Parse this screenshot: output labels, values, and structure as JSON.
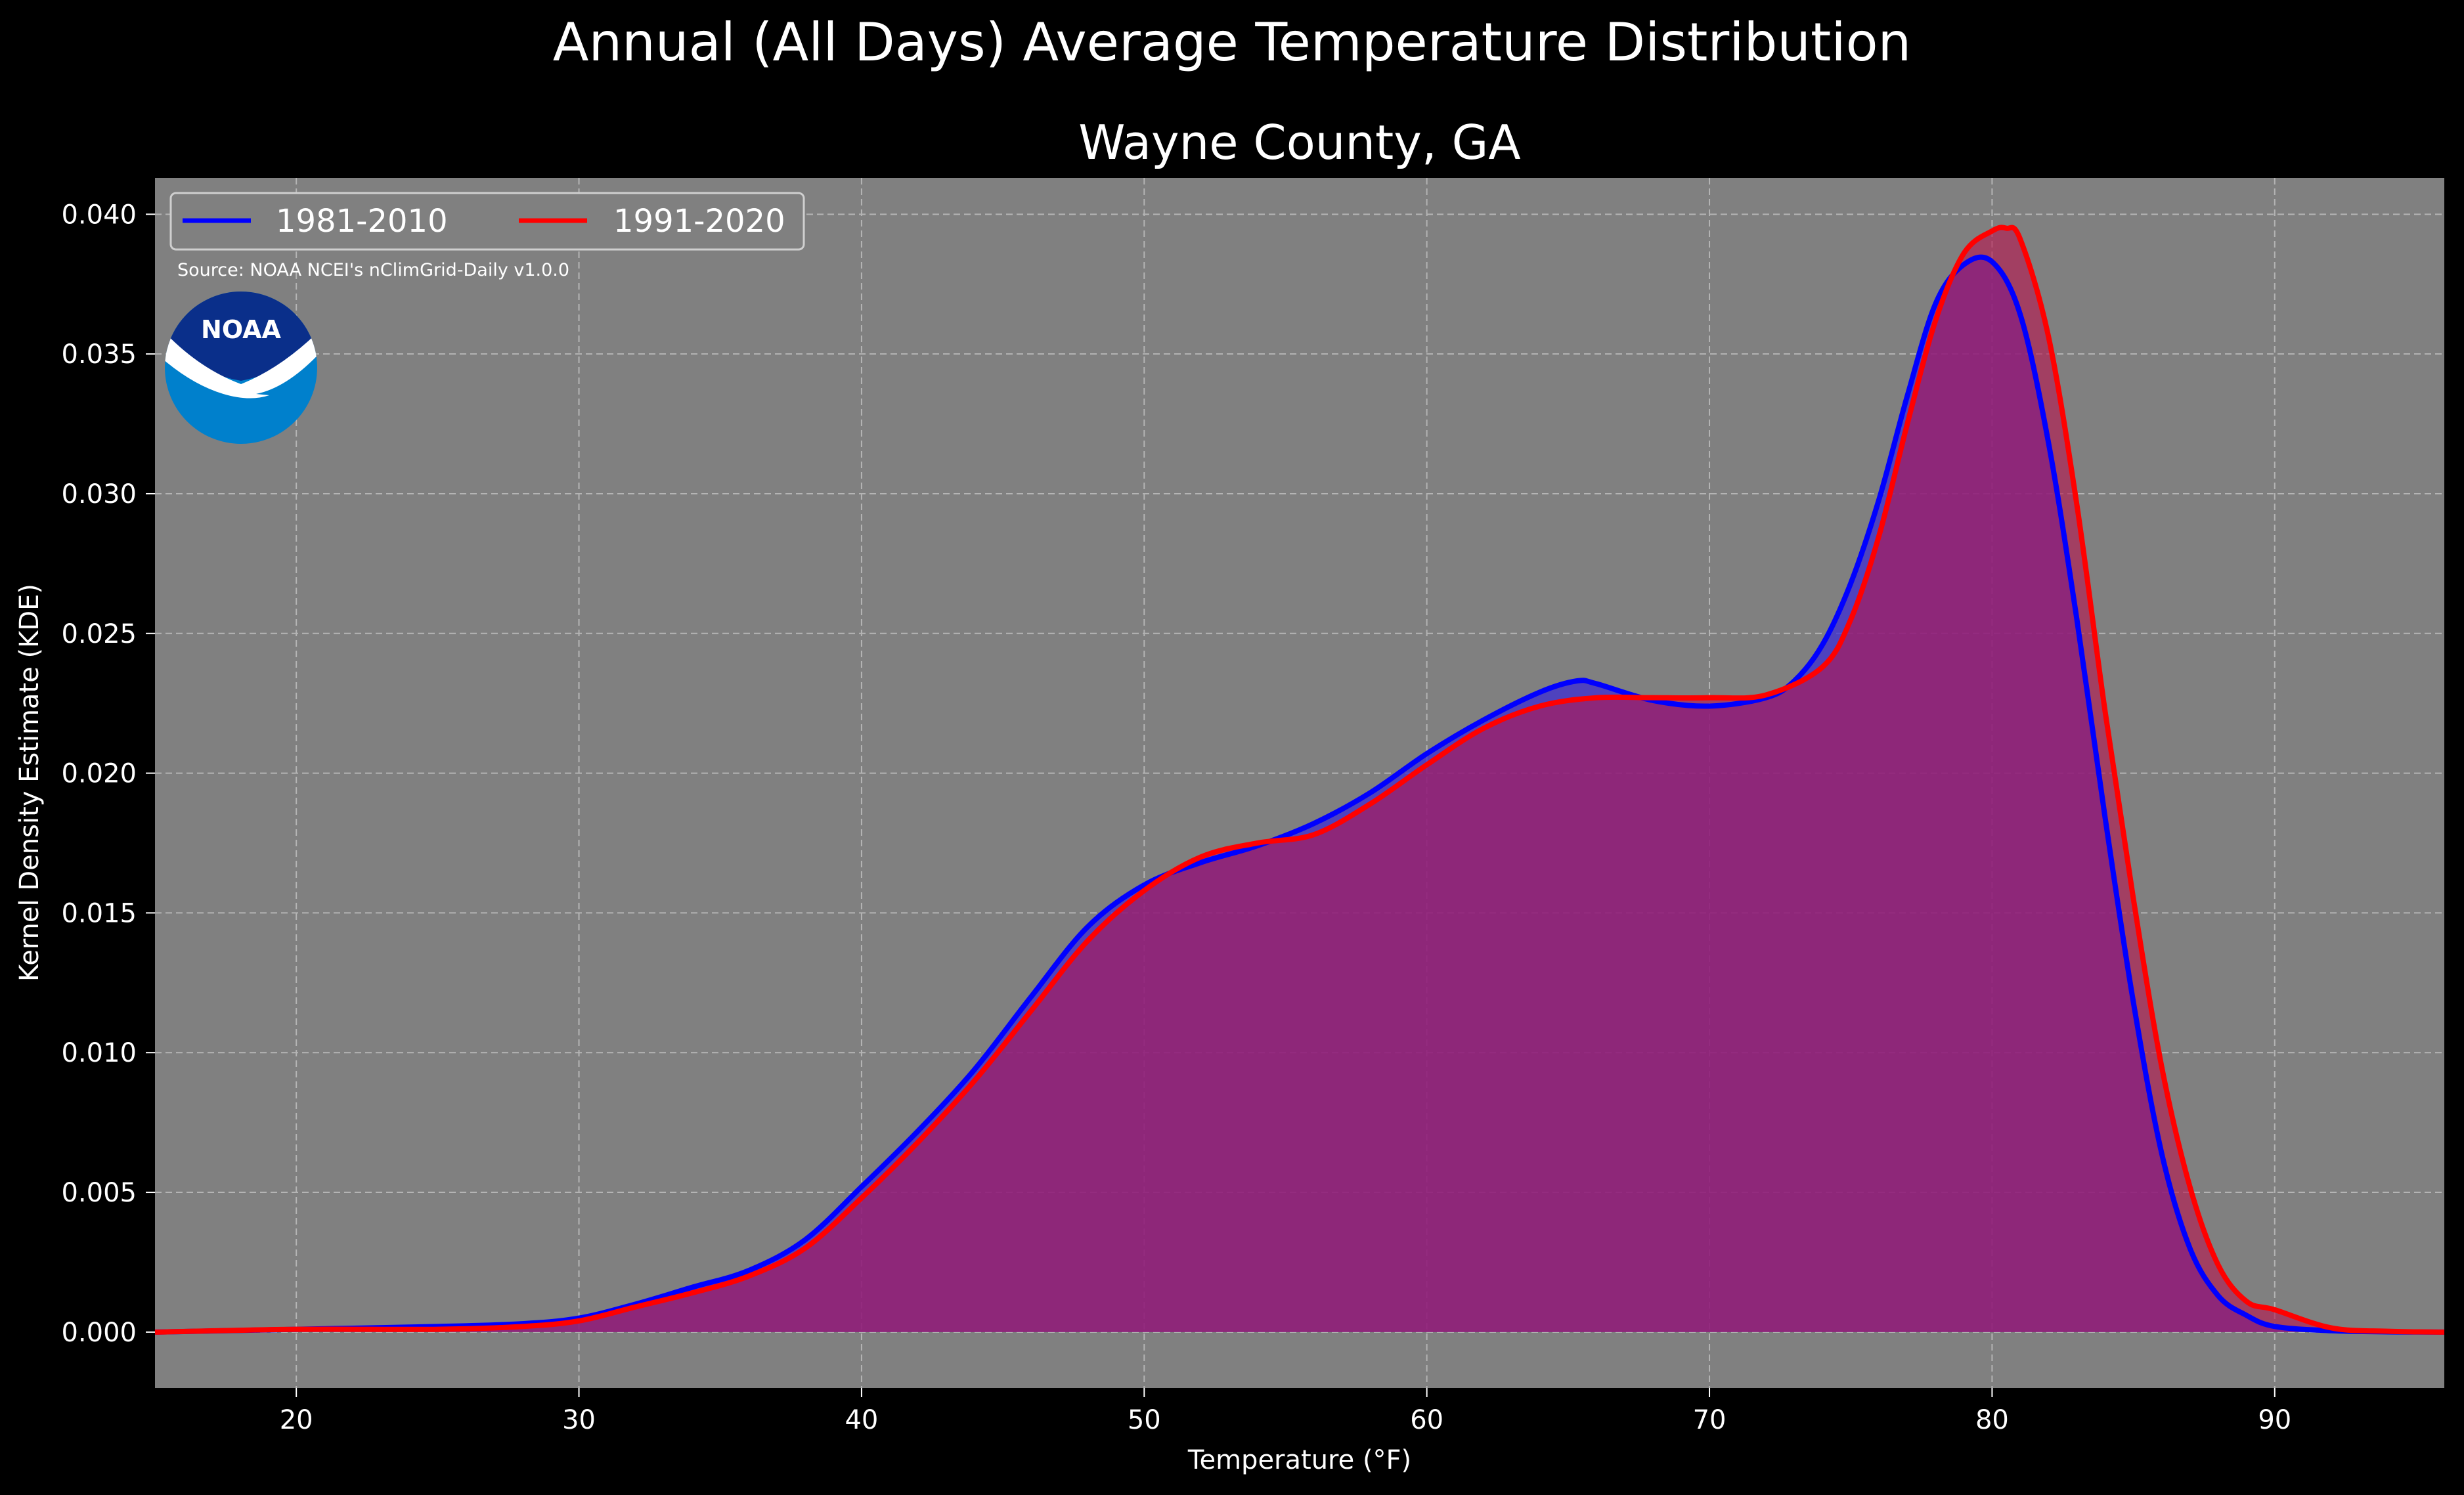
{
  "chart_data": {
    "type": "area",
    "title": "Annual (All Days) Average Temperature Distribution",
    "subtitle": "Wayne County, GA",
    "xlabel": "Temperature (°F)",
    "ylabel": "Kernel Density Estimate (KDE)",
    "xlim": [
      15,
      96
    ],
    "ylim": [
      -0.002,
      0.0413
    ],
    "xticks": [
      20,
      30,
      40,
      50,
      60,
      70,
      80,
      90
    ],
    "yticks": [
      0.0,
      0.005,
      0.01,
      0.015,
      0.02,
      0.025,
      0.03,
      0.035,
      0.04
    ],
    "ytick_labels": [
      "0.000",
      "0.005",
      "0.010",
      "0.015",
      "0.020",
      "0.025",
      "0.030",
      "0.035",
      "0.040"
    ],
    "grid": true,
    "legend_position": "top-left",
    "source": "Source: NOAA NCEI's nClimGrid-Daily v1.0.0",
    "logo_text": "NOAA",
    "series": [
      {
        "name": "1981-2010",
        "color": "#0000ff",
        "fill": "#3a2ad6",
        "x": [
          15,
          20,
          25,
          28,
          30,
          32,
          34,
          36,
          38,
          40,
          42,
          44,
          46,
          48,
          50,
          52,
          54,
          56,
          58,
          60,
          62,
          64,
          65.3,
          66,
          68,
          70,
          72,
          73,
          74,
          75,
          76,
          77,
          78,
          79,
          80,
          81,
          82,
          83,
          84,
          85,
          86,
          87,
          88,
          89,
          90,
          92,
          94,
          96
        ],
        "y": [
          0,
          0.0001,
          0.0002,
          0.0003,
          0.0005,
          0.001,
          0.0016,
          0.0022,
          0.0033,
          0.0052,
          0.0072,
          0.0094,
          0.012,
          0.0145,
          0.016,
          0.0168,
          0.0174,
          0.0182,
          0.0193,
          0.0207,
          0.0219,
          0.0229,
          0.0233,
          0.0232,
          0.0226,
          0.0224,
          0.0227,
          0.0233,
          0.0246,
          0.0268,
          0.0298,
          0.0335,
          0.0368,
          0.0382,
          0.0383,
          0.0364,
          0.0318,
          0.0255,
          0.0184,
          0.0118,
          0.0064,
          0.003,
          0.0013,
          0.0006,
          0.0002,
          5e-05,
          1e-05,
          0
        ]
      },
      {
        "name": "1991-2020",
        "color": "#ff0000",
        "fill": "#b7174f",
        "x": [
          15,
          20,
          25,
          28,
          30,
          32,
          34,
          36,
          38,
          40,
          42,
          44,
          46,
          48,
          50,
          52,
          54,
          56,
          58,
          60,
          62,
          64,
          66,
          68,
          70,
          72,
          74,
          75,
          76,
          77,
          78,
          79,
          80,
          80.5,
          81,
          82,
          83,
          84,
          85,
          86,
          87,
          88,
          89,
          90,
          92,
          94,
          96
        ],
        "y": [
          0,
          0.0001,
          0.0001,
          0.0002,
          0.0004,
          0.0009,
          0.0014,
          0.002,
          0.003,
          0.0048,
          0.0068,
          0.009,
          0.0115,
          0.014,
          0.0158,
          0.017,
          0.0175,
          0.0178,
          0.0189,
          0.0203,
          0.0216,
          0.0224,
          0.0227,
          0.0227,
          0.0227,
          0.0228,
          0.0238,
          0.0255,
          0.0285,
          0.0325,
          0.0362,
          0.0386,
          0.0394,
          0.0395,
          0.0391,
          0.0356,
          0.0296,
          0.0222,
          0.0155,
          0.0095,
          0.0052,
          0.0024,
          0.0011,
          0.0008,
          0.00015,
          3e-05,
          0
        ]
      }
    ]
  },
  "colors": {
    "page_background": "#000000",
    "plot_background": "#808080",
    "overlap_fill": "#9e1f5e",
    "logo_dark": "#0a2f8a",
    "logo_light": "#0080cc"
  }
}
